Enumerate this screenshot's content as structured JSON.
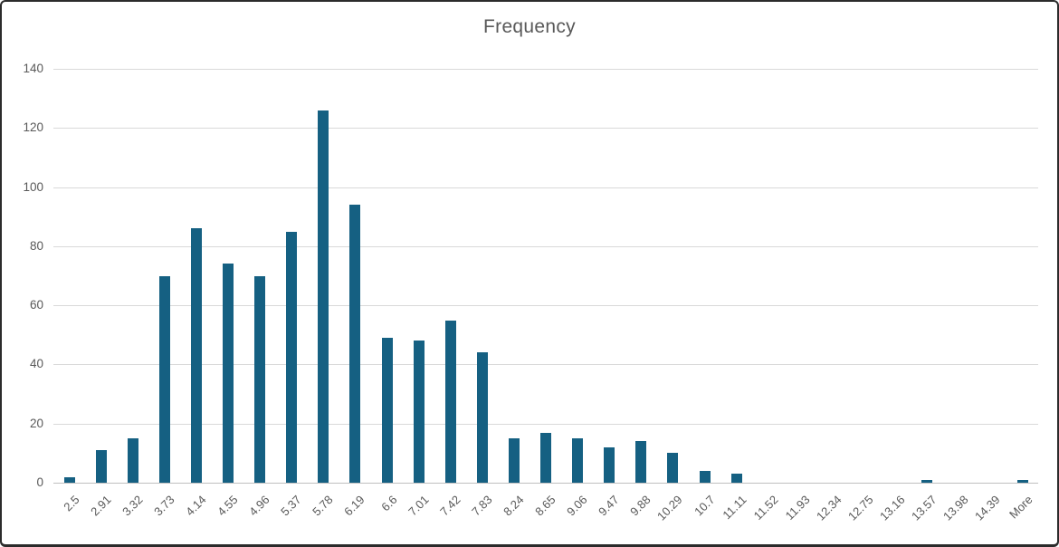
{
  "chart_data": {
    "type": "bar",
    "title": "Frequency",
    "categories": [
      "2.5",
      "2.91",
      "3.32",
      "3.73",
      "4.14",
      "4.55",
      "4.96",
      "5.37",
      "5.78",
      "6.19",
      "6.6",
      "7.01",
      "7.42",
      "7.83",
      "8.24",
      "8.65",
      "9.06",
      "9.47",
      "9.88",
      "10.29",
      "10.7",
      "11.11",
      "11.52",
      "11.93",
      "12.34",
      "12.75",
      "13.16",
      "13.57",
      "13.98",
      "14.39",
      "More"
    ],
    "values": [
      2,
      11,
      15,
      70,
      86,
      74,
      70,
      85,
      126,
      94,
      49,
      48,
      55,
      44,
      15,
      17,
      15,
      12,
      14,
      10,
      4,
      3,
      0,
      0,
      0,
      0,
      0,
      1,
      0,
      0,
      1
    ],
    "xlabel": "",
    "ylabel": "",
    "ylim": [
      0,
      140
    ],
    "ytick_step": 20,
    "yticks": [
      "0",
      "20",
      "40",
      "60",
      "80",
      "100",
      "120",
      "140"
    ],
    "x_label_rotation": -45,
    "grid": true,
    "legend_position": "none",
    "bar_color": "#156082",
    "gridline_color": "#d9d9d9",
    "axis_line_color": "#bfbfbf",
    "axis_text_color": "#595959",
    "title_color": "#595959",
    "background_color": "#ffffff"
  }
}
